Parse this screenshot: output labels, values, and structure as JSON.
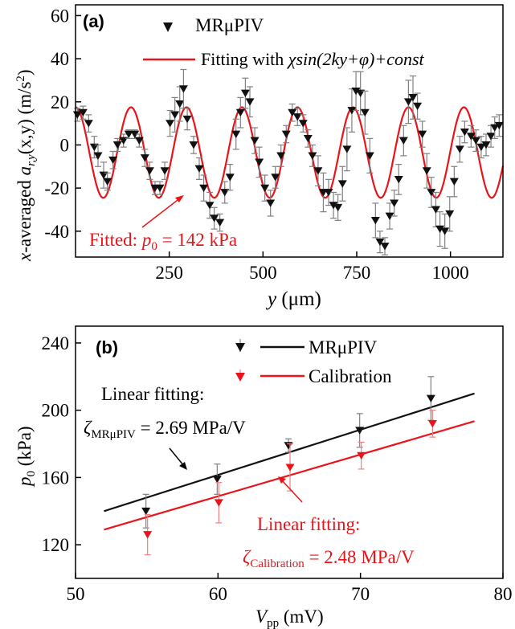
{
  "chart_data": [
    {
      "panel": "(a)",
      "type": "scatter",
      "ylabel_prefix": "x",
      "ylabel_mid": "-averaged ",
      "ylabel_var": "a",
      "ylabel_sub": "r,y",
      "ylabel_args": "(x,y)",
      "ylabel_unit": "(m/s",
      "ylabel_unit_sup": "2",
      "ylabel_unit_end": ")",
      "xlabel_var": "y",
      "xlabel_unit": "(μm)",
      "xlim": [
        0,
        1140
      ],
      "ylim": [
        -52,
        65
      ],
      "xticks": [
        250,
        500,
        750,
        1000
      ],
      "yticks": [
        -40,
        -20,
        0,
        20,
        40,
        60
      ],
      "legend": {
        "series1": "MRμPIV",
        "series2_prefix": "Fitting with ",
        "series2_formula": "χsin(2ky+φ)+const"
      },
      "annotation": {
        "prefix": "Fitted: ",
        "var": "p",
        "sub": "0",
        "value": " = 142 kPa"
      },
      "fit": {
        "amplitude": 21,
        "period": 148,
        "phase_x0": 0,
        "const": -3.5,
        "x_range": [
          0,
          1140
        ]
      },
      "colors": {
        "data": "#111111",
        "error": "#808080",
        "fit": "#e8141a"
      },
      "series": [
        {
          "name": "MRμPIV",
          "points": [
            [
              5,
              14,
              3
            ],
            [
              20,
              15,
              3
            ],
            [
              35,
              10,
              4
            ],
            [
              50,
              -1,
              5
            ],
            [
              60,
              -5,
              5
            ],
            [
              75,
              -14,
              6
            ],
            [
              85,
              -17,
              4
            ],
            [
              100,
              -7,
              4
            ],
            [
              112,
              0,
              3
            ],
            [
              128,
              2,
              3
            ],
            [
              142,
              5,
              2
            ],
            [
              158,
              5,
              2
            ],
            [
              170,
              2,
              3
            ],
            [
              185,
              -6,
              4
            ],
            [
              198,
              -12,
              4
            ],
            [
              212,
              -20,
              3
            ],
            [
              225,
              -20,
              3
            ],
            [
              238,
              -12,
              4
            ],
            [
              252,
              10,
              6
            ],
            [
              265,
              14,
              8
            ],
            [
              278,
              19,
              8
            ],
            [
              288,
              26,
              9
            ],
            [
              298,
              12,
              5
            ],
            [
              315,
              0,
              4
            ],
            [
              330,
              -11,
              5
            ],
            [
              342,
              -20,
              6
            ],
            [
              358,
              -28,
              6
            ],
            [
              370,
              -34,
              5
            ],
            [
              385,
              -36,
              4
            ],
            [
              398,
              -22,
              5
            ],
            [
              412,
              -15,
              6
            ],
            [
              428,
              5,
              7
            ],
            [
              440,
              15,
              7
            ],
            [
              453,
              24,
              7
            ],
            [
              465,
              20,
              7
            ],
            [
              478,
              2,
              6
            ],
            [
              490,
              -8,
              7
            ],
            [
              505,
              -20,
              6
            ],
            [
              520,
              -27,
              6
            ],
            [
              533,
              -15,
              5
            ],
            [
              548,
              -5,
              5
            ],
            [
              562,
              5,
              4
            ],
            [
              578,
              15,
              4
            ],
            [
              592,
              13,
              4
            ],
            [
              607,
              10,
              4
            ],
            [
              620,
              3,
              4
            ],
            [
              632,
              -5,
              5
            ],
            [
              647,
              -12,
              7
            ],
            [
              661,
              -22,
              9
            ],
            [
              675,
              -22,
              6
            ],
            [
              688,
              -28,
              6
            ],
            [
              700,
              -29,
              6
            ],
            [
              712,
              -18,
              8
            ],
            [
              724,
              -2,
              10
            ],
            [
              737,
              16,
              10
            ],
            [
              748,
              25,
              9
            ],
            [
              760,
              24,
              10
            ],
            [
              772,
              15,
              10
            ],
            [
              785,
              -5,
              8
            ],
            [
              800,
              -35,
              8
            ],
            [
              812,
              -45,
              5
            ],
            [
              825,
              -47,
              4
            ],
            [
              838,
              -33,
              6
            ],
            [
              850,
              -27,
              6
            ],
            [
              862,
              -16,
              7
            ],
            [
              875,
              2,
              7
            ],
            [
              888,
              20,
              10
            ],
            [
              900,
              22,
              10
            ],
            [
              912,
              18,
              6
            ],
            [
              925,
              5,
              6
            ],
            [
              937,
              -12,
              8
            ],
            [
              949,
              -22,
              7
            ],
            [
              961,
              -30,
              8
            ],
            [
              972,
              -39,
              8
            ],
            [
              985,
              -40,
              8
            ],
            [
              998,
              -32,
              8
            ],
            [
              1010,
              -17,
              7
            ],
            [
              1025,
              -2,
              6
            ],
            [
              1038,
              6,
              5
            ],
            [
              1055,
              4,
              5
            ],
            [
              1068,
              2,
              5
            ],
            [
              1082,
              -1,
              5
            ],
            [
              1095,
              0,
              5
            ],
            [
              1108,
              4,
              5
            ],
            [
              1118,
              8,
              5
            ],
            [
              1130,
              9,
              5
            ]
          ]
        }
      ]
    },
    {
      "panel": "(b)",
      "type": "scatter",
      "ylabel_var": "p",
      "ylabel_sub": "0",
      "ylabel_unit": "(kPa)",
      "xlabel_var": "V",
      "xlabel_sub": "pp",
      "xlabel_unit": "(mV)",
      "xlim": [
        50,
        80
      ],
      "ylim": [
        100,
        250
      ],
      "xticks": [
        50,
        60,
        70,
        80
      ],
      "yticks": [
        120,
        160,
        200,
        240
      ],
      "legend": {
        "series1": "MRμPIV",
        "series2": "Calibration"
      },
      "annotations": {
        "left_line1": "Linear fitting:",
        "left_zeta": "ζ",
        "left_sub": "MRμPIV",
        "left_value": " = 2.69 MPa/V",
        "right_line1": "Linear fitting:",
        "right_zeta": "ζ",
        "right_sub": "Calibration",
        "right_value": " = 2.48 MPa/V"
      },
      "colors": {
        "mr": "#111111",
        "cal": "#e8141a",
        "error": "#808080",
        "cal_error": "#f08080"
      },
      "series": [
        {
          "name": "MRμPIV",
          "points": [
            [
              55,
              140,
              10
            ],
            [
              60,
              159,
              9
            ],
            [
              65,
              179,
              4
            ],
            [
              70,
              188,
              10
            ],
            [
              75,
              207,
              13
            ]
          ]
        },
        {
          "name": "Calibration",
          "points": [
            [
              55,
              126,
              12
            ],
            [
              60,
              145,
              12
            ],
            [
              65,
              166,
              14
            ],
            [
              70,
              173,
              8
            ],
            [
              75,
              192,
              8
            ]
          ]
        }
      ],
      "fits": [
        {
          "name": "MRμPIV",
          "slope": 2.69,
          "intercept": 0.12,
          "x_range": [
            52,
            78
          ]
        },
        {
          "name": "Calibration",
          "slope": 2.48,
          "intercept": 0.2,
          "x_range": [
            52,
            78
          ]
        }
      ]
    }
  ]
}
